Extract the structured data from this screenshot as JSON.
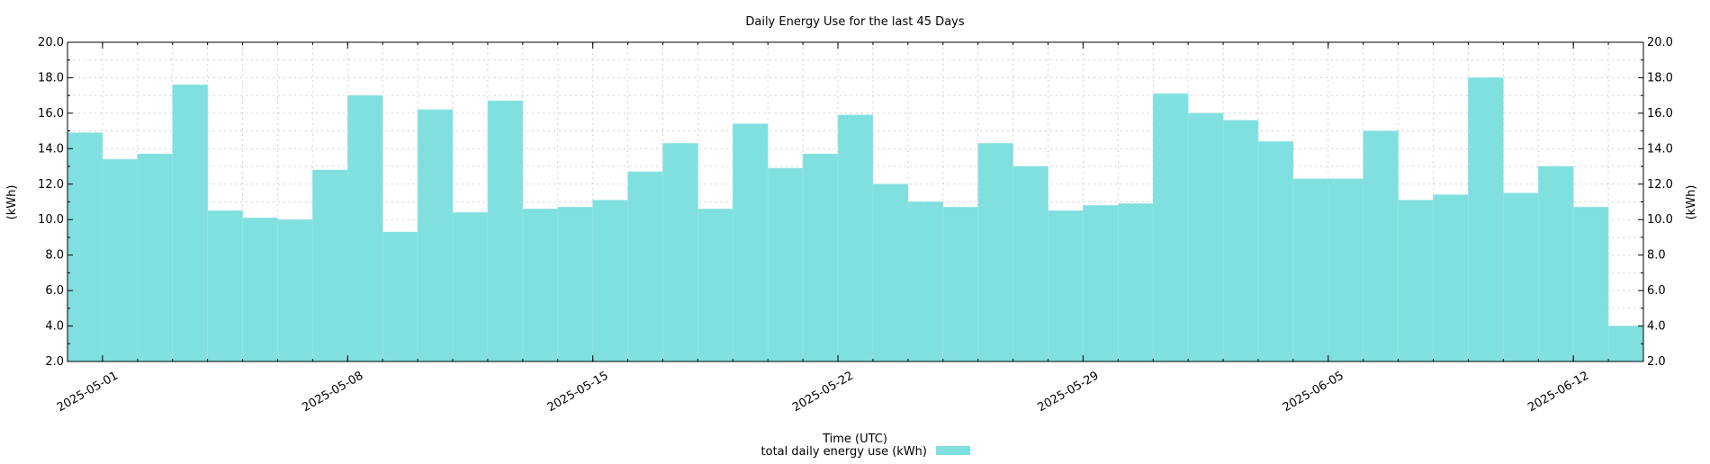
{
  "chart_data": {
    "type": "bar",
    "title": "Daily Energy Use for the last 45 Days",
    "xlabel": "Time (UTC)",
    "ylabel": "(kWh)",
    "ylabel_right": "(kWh)",
    "ylim": [
      2.0,
      20.0
    ],
    "yticks": [
      "2.0",
      "4.0",
      "6.0",
      "8.0",
      "10.0",
      "12.0",
      "14.0",
      "16.0",
      "18.0",
      "20.0"
    ],
    "xticks": [
      "2025-05-01",
      "2025-05-08",
      "2025-05-15",
      "2025-05-22",
      "2025-05-29",
      "2025-06-05",
      "2025-06-12"
    ],
    "x_start": "2025-04-30",
    "x_end": "2025-06-13",
    "grid": true,
    "legend_position": "bottom-center",
    "series": [
      {
        "name": "total daily energy use (kWh)",
        "color": "#80dfdf",
        "dates": [
          "2025-04-30",
          "2025-05-01",
          "2025-05-02",
          "2025-05-03",
          "2025-05-04",
          "2025-05-05",
          "2025-05-06",
          "2025-05-07",
          "2025-05-08",
          "2025-05-09",
          "2025-05-10",
          "2025-05-11",
          "2025-05-12",
          "2025-05-13",
          "2025-05-14",
          "2025-05-15",
          "2025-05-16",
          "2025-05-17",
          "2025-05-18",
          "2025-05-19",
          "2025-05-20",
          "2025-05-21",
          "2025-05-22",
          "2025-05-23",
          "2025-05-24",
          "2025-05-25",
          "2025-05-26",
          "2025-05-27",
          "2025-05-28",
          "2025-05-29",
          "2025-05-30",
          "2025-05-31",
          "2025-06-01",
          "2025-06-02",
          "2025-06-03",
          "2025-06-04",
          "2025-06-05",
          "2025-06-06",
          "2025-06-07",
          "2025-06-08",
          "2025-06-09",
          "2025-06-10",
          "2025-06-11",
          "2025-06-12",
          "2025-06-13"
        ],
        "values": [
          14.9,
          13.4,
          13.7,
          17.6,
          10.5,
          10.1,
          10.0,
          12.8,
          17.0,
          9.3,
          16.2,
          10.4,
          16.7,
          10.6,
          10.7,
          11.1,
          12.7,
          14.3,
          10.6,
          15.4,
          12.9,
          13.7,
          15.9,
          12.0,
          11.0,
          10.7,
          14.3,
          13.0,
          10.5,
          10.8,
          10.9,
          17.1,
          16.0,
          15.6,
          14.4,
          12.3,
          12.3,
          15.0,
          11.1,
          11.4,
          18.0,
          11.5,
          13.0,
          10.7,
          4.0
        ]
      }
    ]
  }
}
